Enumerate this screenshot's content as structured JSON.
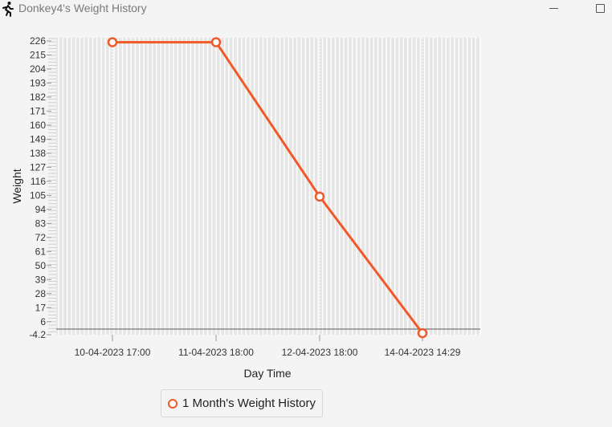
{
  "window": {
    "title": "Donkey4's Weight History",
    "icon": "running-person-icon"
  },
  "colors": {
    "series": "#f05a28",
    "plot_background": "#e6e6e6",
    "grid": "#ffffff"
  },
  "chart_data": {
    "type": "line",
    "xlabel": "Day Time",
    "ylabel": "Weight",
    "x_categories": [
      "10-04-2023 17:00",
      "11-04-2023 18:00",
      "12-04-2023 18:00",
      "14-04-2023 14:29"
    ],
    "y_ticks": [
      226,
      215,
      204,
      193,
      182,
      171,
      160,
      149,
      138,
      127,
      116,
      105,
      94,
      83,
      72,
      61,
      50,
      39,
      28,
      17,
      6,
      -4.2
    ],
    "ylim": [
      -4.2,
      226
    ],
    "series": [
      {
        "name": "1 Month's Weight History",
        "values": [
          225,
          225,
          104,
          -3
        ]
      }
    ],
    "grid": true,
    "legend_position": "bottom-center"
  }
}
